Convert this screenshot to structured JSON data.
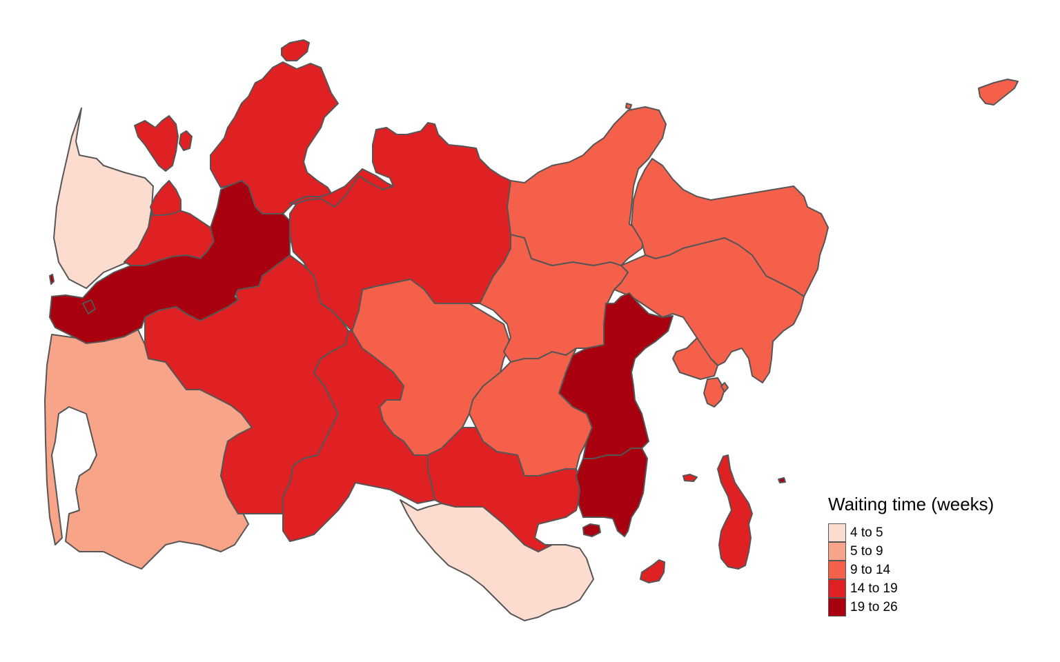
{
  "legend": {
    "title": "Waiting time (weeks)",
    "classes": [
      {
        "label": "4 to 5",
        "color": "#fcdccf"
      },
      {
        "label": "5 to 9",
        "color": "#f7a488"
      },
      {
        "label": "9 to 14",
        "color": "#f5604a"
      },
      {
        "label": "14 to 19",
        "color": "#e02124"
      },
      {
        "label": "19 to 26",
        "color": "#a8000f"
      }
    ]
  },
  "map": {
    "border_color": "#555555",
    "background": "#ffffff",
    "regions": [
      {
        "class": 0
      },
      {
        "class": 0
      },
      {
        "class": 1
      },
      {
        "class": 2
      },
      {
        "class": 2
      },
      {
        "class": 2
      },
      {
        "class": 2
      },
      {
        "class": 2
      },
      {
        "class": 2
      },
      {
        "class": 2
      },
      {
        "class": 2
      },
      {
        "class": 2
      },
      {
        "class": 2
      },
      {
        "class": 2
      },
      {
        "class": 3
      },
      {
        "class": 3
      },
      {
        "class": 3
      },
      {
        "class": 3
      },
      {
        "class": 3
      },
      {
        "class": 3
      },
      {
        "class": 3
      },
      {
        "class": 3
      },
      {
        "class": 3
      },
      {
        "class": 3
      },
      {
        "class": 3
      },
      {
        "class": 3
      },
      {
        "class": 3
      },
      {
        "class": 3
      },
      {
        "class": 4
      },
      {
        "class": 4
      },
      {
        "class": 4
      },
      {
        "class": 4
      },
      {
        "class": 4
      },
      {
        "class": 4
      }
    ]
  }
}
